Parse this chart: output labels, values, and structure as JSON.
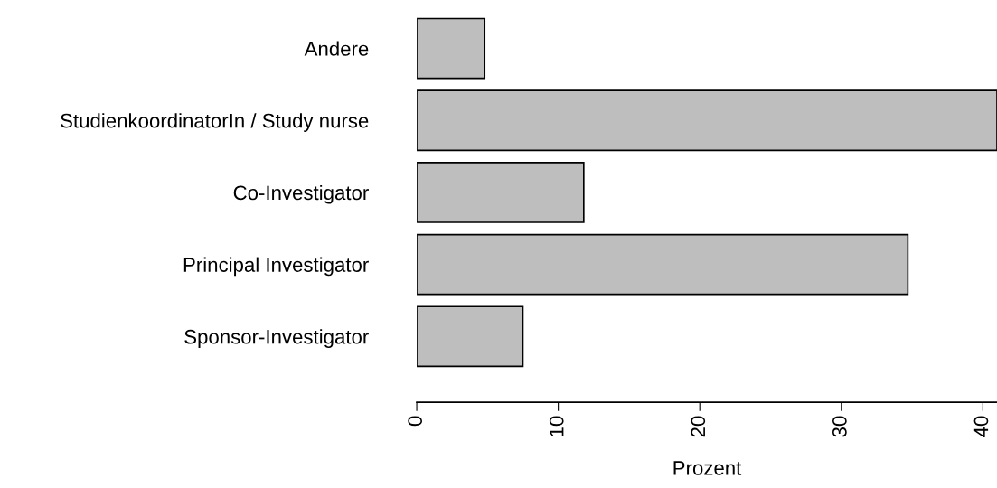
{
  "chart_data": {
    "type": "bar",
    "orientation": "horizontal",
    "xlabel": "Prozent",
    "categories": [
      "Andere",
      "StudienkoordinatorIn / Study nurse",
      "Co-Investigator",
      "Principal Investigator",
      "Sponsor-Investigator"
    ],
    "values": [
      4.8,
      41,
      11.8,
      34.7,
      7.5
    ],
    "color": "#bebebe",
    "xlim": [
      0,
      41
    ],
    "xticks": [
      0,
      10,
      20,
      30,
      40
    ],
    "grid": false,
    "legend": false
  }
}
